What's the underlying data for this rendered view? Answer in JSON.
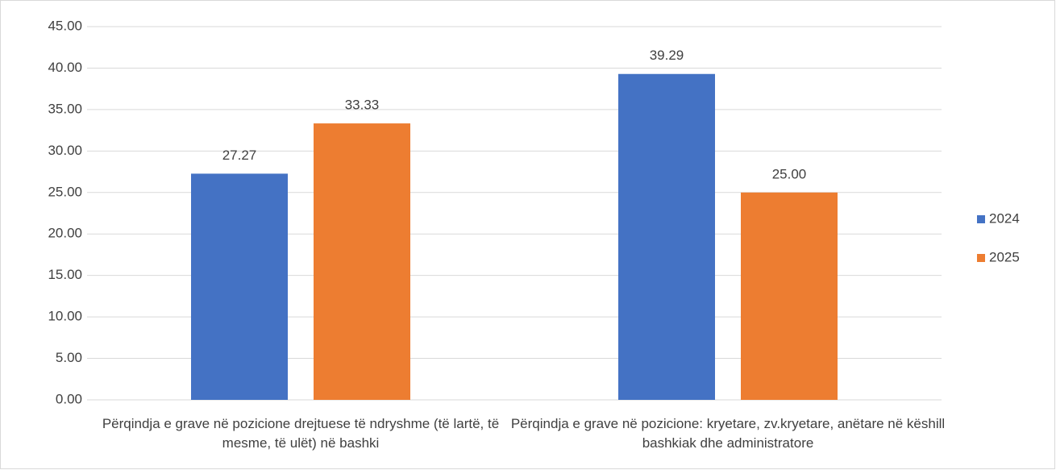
{
  "chart_data": {
    "type": "bar",
    "categories": [
      "Përqindja e grave në pozicione drejtuese të ndryshme (të lartë, të mesme, të ulët) në bashki",
      "Përqindja e grave në pozicione: kryetare, zv.kryetare, anëtare në këshill bashkiak dhe administratore"
    ],
    "series": [
      {
        "name": "2024",
        "color": "#4472c4",
        "values": [
          27.27,
          39.29
        ],
        "value_labels": [
          "27.27",
          "39.29"
        ]
      },
      {
        "name": "2025",
        "color": "#ed7d31",
        "values": [
          33.33,
          25
        ],
        "value_labels": [
          "33.33",
          "25.00"
        ]
      }
    ],
    "ylim": [
      0,
      45
    ],
    "yticks": [
      {
        "value": 0,
        "label": "0.00"
      },
      {
        "value": 5,
        "label": "5.00"
      },
      {
        "value": 10,
        "label": "10.00"
      },
      {
        "value": 15,
        "label": "15.00"
      },
      {
        "value": 20,
        "label": "20.00"
      },
      {
        "value": 25,
        "label": "25.00"
      },
      {
        "value": 30,
        "label": "30.00"
      },
      {
        "value": 35,
        "label": "35.00"
      },
      {
        "value": 40,
        "label": "40.00"
      },
      {
        "value": 45,
        "label": "45.00"
      }
    ],
    "grid": true,
    "legend": "right"
  }
}
